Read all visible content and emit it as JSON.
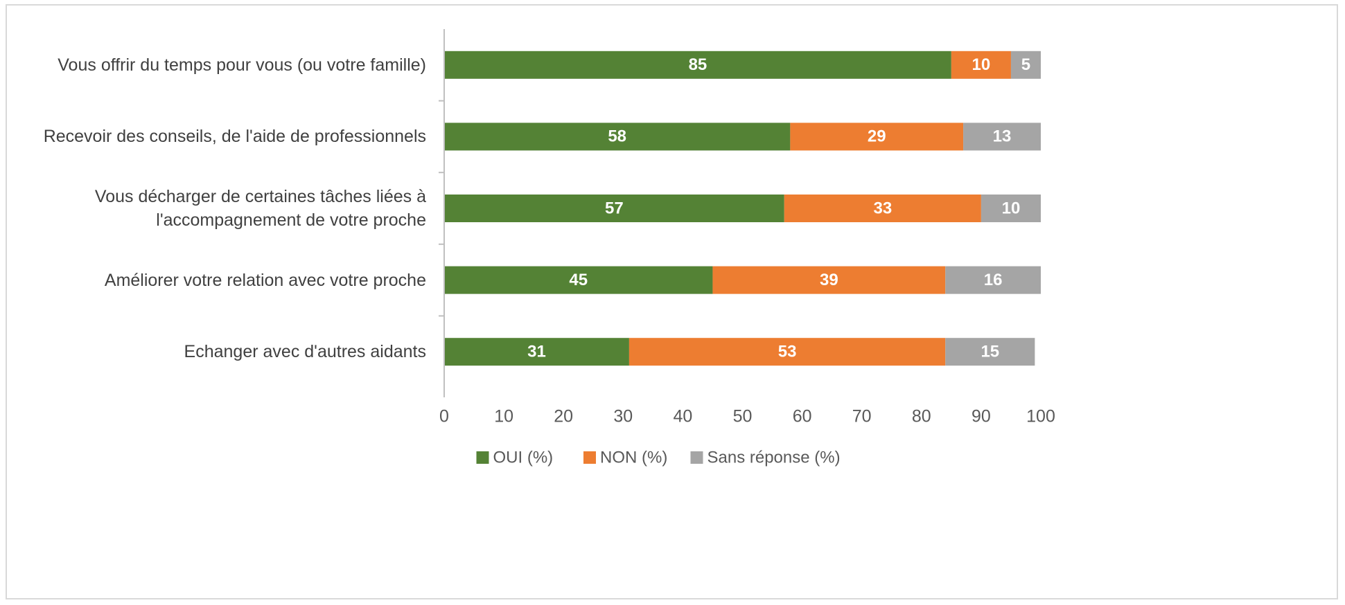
{
  "chart_data": {
    "type": "stacked_bar_horizontal",
    "categories": [
      "Vous offrir du temps pour vous (ou votre famille)",
      "Recevoir des conseils, de l'aide de professionnels",
      "Vous décharger de certaines tâches liées à l'accompagnement de votre proche",
      "Améliorer votre relation avec votre proche",
      "Echanger avec d'autres aidants"
    ],
    "series": [
      {
        "name": "OUI (%)",
        "color": "#548235",
        "values": [
          85,
          58,
          57,
          45,
          31
        ]
      },
      {
        "name": "NON (%)",
        "color": "#ed7d31",
        "values": [
          10,
          29,
          33,
          39,
          53
        ]
      },
      {
        "name": "Sans réponse (%)",
        "color": "#a5a5a5",
        "values": [
          5,
          13,
          10,
          16,
          15
        ]
      }
    ],
    "xlim": [
      0,
      100
    ],
    "xticks": [
      0,
      10,
      20,
      30,
      40,
      50,
      60,
      70,
      80,
      90,
      100
    ],
    "grid": false,
    "legend": "bottom"
  }
}
